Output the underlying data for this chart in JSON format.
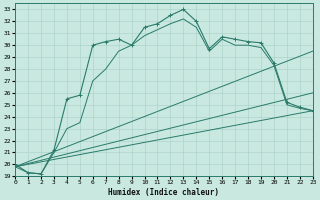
{
  "xlabel": "Humidex (Indice chaleur)",
  "ylabel": "",
  "xlim": [
    0,
    23
  ],
  "ylim": [
    19,
    33.5
  ],
  "yticks": [
    19,
    20,
    21,
    22,
    23,
    24,
    25,
    26,
    27,
    28,
    29,
    30,
    31,
    32,
    33
  ],
  "xticks": [
    0,
    1,
    2,
    3,
    4,
    5,
    6,
    7,
    8,
    9,
    10,
    11,
    12,
    13,
    14,
    15,
    16,
    17,
    18,
    19,
    20,
    21,
    22,
    23
  ],
  "bg_color": "#c8e8e0",
  "line_color": "#2a7a6a",
  "grid_color": "#a8d0c8",
  "curve_main": {
    "x": [
      0,
      1,
      2,
      3,
      4,
      5,
      6,
      7,
      8,
      9,
      10,
      11,
      12,
      13,
      14,
      15,
      16,
      17,
      18,
      19,
      20,
      21,
      22,
      23
    ],
    "y": [
      20.0,
      19.3,
      19.2,
      21.2,
      25.5,
      25.8,
      30.0,
      30.3,
      30.5,
      30.0,
      31.5,
      31.8,
      32.5,
      33.0,
      32.0,
      29.7,
      30.7,
      30.5,
      30.3,
      30.2,
      28.5,
      25.2,
      24.8,
      24.5
    ]
  },
  "curve_smooth": {
    "x": [
      0,
      1,
      2,
      3,
      4,
      5,
      6,
      7,
      8,
      9,
      10,
      11,
      12,
      13,
      14,
      15,
      16,
      17,
      18,
      19,
      20,
      21,
      22,
      23
    ],
    "y": [
      19.8,
      19.3,
      19.2,
      21.0,
      23.0,
      23.5,
      27.0,
      28.0,
      29.5,
      30.0,
      30.8,
      31.3,
      31.8,
      32.2,
      31.5,
      29.5,
      30.5,
      30.0,
      30.0,
      29.8,
      28.3,
      25.0,
      24.7,
      24.5
    ]
  },
  "line1": {
    "x": [
      0,
      23
    ],
    "y": [
      19.8,
      29.5
    ]
  },
  "line2": {
    "x": [
      0,
      23
    ],
    "y": [
      19.8,
      26.0
    ]
  },
  "line3": {
    "x": [
      0,
      23
    ],
    "y": [
      19.8,
      24.5
    ]
  }
}
